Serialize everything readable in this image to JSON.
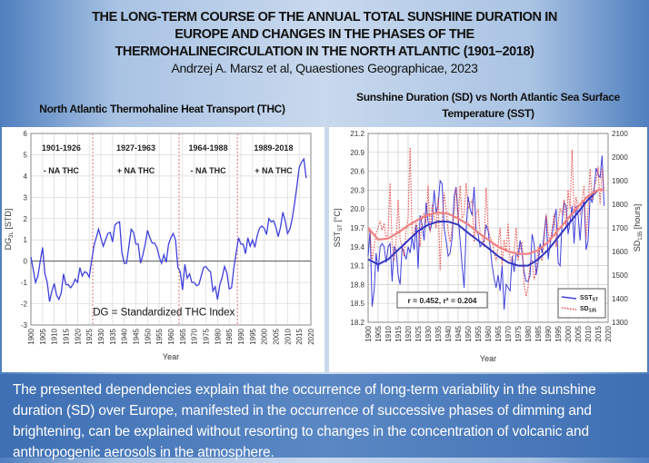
{
  "header": {
    "title_lines": [
      "THE LONG-TERM COURSE OF THE ANNUAL TOTAL SUNSHINE DURATION IN",
      "EUROPE AND CHANGES IN THE PHASES OF THE",
      "THERMOHALINECIRCULATION IN THE NORTH ATLANTIC (1901–2018)"
    ],
    "citation": "Andrzej A. Marsz et al, Quaestiones Geographicae, 2023"
  },
  "left_heading": "North Atlantic Thermohaline Heat Transport (THC)",
  "right_heading": [
    "Sunshine Duration (SD) vs North Atlantic Sea Surface",
    "Temperature (SST)"
  ],
  "footer": "The presented dependencies explain that the occurrence of long-term variability in the sunshine duration (SD) over Europe, manifested in the occurrence of successive phases of dimming and brightening, can be explained without resorting to changes in the concentration of volcanic and anthropogenic aerosols in the atmosphere.",
  "colors": {
    "blue": "#3f3fdd",
    "red": "#e84040",
    "phase_line": "#e06060"
  },
  "chart_data": [
    {
      "type": "line",
      "title": "North Atlantic Thermohaline Heat Transport (THC)",
      "xlabel": "Year",
      "ylabel": "DG",
      "ylabel_sub": "3L",
      "ylabel_unit": " [STD]",
      "xlim": [
        1900,
        2020
      ],
      "ylim": [
        -3,
        6
      ],
      "yticks": [
        -3,
        -2,
        -1,
        0,
        1,
        2,
        3,
        4,
        5,
        6
      ],
      "xticks_step": 5,
      "grid": true,
      "annotation": "DG = Standardized THC Index",
      "phase_boundaries": [
        1926.5,
        1963.5,
        1988.5
      ],
      "phases": [
        {
          "years": "1901-1926",
          "label": "- NA THC",
          "center": 1913
        },
        {
          "years": "1927-1963",
          "label": "+ NA THC",
          "center": 1945
        },
        {
          "years": "1964-1988",
          "label": "- NA THC",
          "center": 1976
        },
        {
          "years": "1989-2018",
          "label": "+ NA THC",
          "center": 2004
        }
      ],
      "start_year": 1900,
      "values": [
        0.2,
        -0.4,
        -1.0,
        -0.7,
        0.0,
        0.65,
        -0.6,
        -1.0,
        -1.9,
        -1.4,
        -1.05,
        -1.6,
        -1.8,
        -1.5,
        -0.6,
        -1.1,
        -1.1,
        -1.25,
        -1.1,
        -0.85,
        -1.0,
        -0.3,
        -0.7,
        -0.5,
        -0.55,
        -0.75,
        0.0,
        0.7,
        1.1,
        1.5,
        1.1,
        0.7,
        1.0,
        1.3,
        1.35,
        0.9,
        1.7,
        1.8,
        1.85,
        0.4,
        -0.1,
        -0.1,
        0.7,
        1.5,
        1.35,
        0.8,
        0.8,
        -0.1,
        0.3,
        0.8,
        1.45,
        1.1,
        0.85,
        0.85,
        0.65,
        0.2,
        -0.1,
        0.3,
        -0.05,
        0.8,
        1.1,
        1.3,
        1.0,
        -0.3,
        -0.5,
        -1.35,
        -0.15,
        -0.8,
        -0.6,
        -1.0,
        -1.0,
        -1.15,
        -1.1,
        -0.7,
        -0.3,
        -0.25,
        -0.4,
        -0.5,
        -1.4,
        -1.2,
        -1.8,
        -1.1,
        -0.75,
        -0.25,
        -0.55,
        -1.3,
        -1.25,
        -0.3,
        0.4,
        1.1,
        0.8,
        0.8,
        0.35,
        1.1,
        0.7,
        1.0,
        0.65,
        1.2,
        1.55,
        1.65,
        1.55,
        1.25,
        2.0,
        1.85,
        1.9,
        1.6,
        1.15,
        1.6,
        2.3,
        1.9,
        1.3,
        1.5,
        2.0,
        2.7,
        3.5,
        4.4,
        4.65,
        4.8,
        3.9
      ]
    },
    {
      "type": "line",
      "title": "Sunshine Duration (SD) vs North Atlantic Sea Surface Temperature (SST)",
      "xlabel": "Year",
      "ylabel_left": "SST",
      "ylabel_left_sub": "ST",
      "ylabel_left_unit": " [°C]",
      "ylabel_right": "SD",
      "ylabel_right_sub": "135",
      "ylabel_right_unit": " [hours]",
      "xlim": [
        1900,
        2020
      ],
      "ylim_left": [
        18.2,
        21.2
      ],
      "ylim_right": [
        1300,
        2100
      ],
      "yticks_left": [
        "18.2",
        "18.5",
        "18.8",
        "19.1",
        "19.4",
        "19.7",
        "20.0",
        "20.3",
        "20.6",
        "20.9",
        "21.2"
      ],
      "yticks_right": [
        "1300",
        "1400",
        "1500",
        "1600",
        "1700",
        "1800",
        "1900",
        "2000",
        "2100"
      ],
      "xticks_step": 5,
      "grid": true,
      "annotation": "r = 0.452, r² = 0.204",
      "legend": "bottom-right",
      "start_year": 1900,
      "series": [
        {
          "name": "SST",
          "sub": "ST",
          "axis": "left",
          "style": "solid",
          "values": [
            19.25,
            19.65,
            18.45,
            18.7,
            19.3,
            19.0,
            19.4,
            19.45,
            19.4,
            19.15,
            19.4,
            19.45,
            18.85,
            19.4,
            19.35,
            18.95,
            18.8,
            19.4,
            19.3,
            19.2,
            19.4,
            19.3,
            19.55,
            19.35,
            19.75,
            19.05,
            19.9,
            19.75,
            19.5,
            20.1,
            19.8,
            19.65,
            19.8,
            20.3,
            19.95,
            20.05,
            20.45,
            20.4,
            19.7,
            19.5,
            19.25,
            19.3,
            19.55,
            20.2,
            20.35,
            19.9,
            19.5,
            19.1,
            18.75,
            19.65,
            20.2,
            20.0,
            19.9,
            20.35,
            19.65,
            19.6,
            19.4,
            19.45,
            19.5,
            19.75,
            19.65,
            19.4,
            19.1,
            18.9,
            18.75,
            18.95,
            18.7,
            19.1,
            18.4,
            18.8,
            18.75,
            18.7,
            19.25,
            19.0,
            19.3,
            19.25,
            19.5,
            19.3,
            19.0,
            18.85,
            18.85,
            18.95,
            19.6,
            19.45,
            18.95,
            19.15,
            19.45,
            19.3,
            19.6,
            19.9,
            19.2,
            19.45,
            19.6,
            19.8,
            20.0,
            19.15,
            19.1,
            19.8,
            20.1,
            20.05,
            19.6,
            19.8,
            20.05,
            19.45,
            20.05,
            19.9,
            19.5,
            20.0,
            20.15,
            19.35,
            19.5,
            20.2,
            20.1,
            20.3,
            20.65,
            20.55,
            20.5,
            20.85,
            20.05
          ]
        },
        {
          "name": "SD",
          "sub": "135",
          "axis": "right",
          "style": "dotted",
          "values": [
            1700,
            1680,
            1560,
            1620,
            1680,
            1700,
            1730,
            1690,
            1720,
            1650,
            1680,
            1890,
            1620,
            1560,
            1650,
            1820,
            1650,
            1620,
            1580,
            1690,
            1740,
            2040,
            1660,
            1680,
            1720,
            1690,
            1620,
            1750,
            1760,
            1720,
            1880,
            1680,
            1800,
            1750,
            1700,
            1830,
            1520,
            1720,
            1850,
            1780,
            1690,
            1640,
            1700,
            1760,
            1870,
            1720,
            1880,
            1740,
            1760,
            1890,
            1780,
            1800,
            1820,
            1640,
            1760,
            1780,
            1680,
            1660,
            1620,
            1870,
            1700,
            1660,
            1640,
            1600,
            1560,
            1620,
            1700,
            1540,
            1650,
            1600,
            1720,
            1560,
            1560,
            1600,
            1700,
            1560,
            1620,
            1640,
            1460,
            1410,
            1450,
            1550,
            1560,
            1480,
            1520,
            1620,
            1580,
            1560,
            1640,
            1760,
            1680,
            1640,
            1700,
            1760,
            1620,
            1720,
            1780,
            1760,
            1820,
            1700,
            1860,
            1780,
            2030,
            1760,
            1830,
            1780,
            1760,
            1820,
            1880,
            1650,
            1780,
            1950,
            1820,
            1870,
            1900,
            1960,
            1800,
            1950,
            1860
          ]
        },
        {
          "name": "SST trend",
          "axis": "left",
          "style": "smooth",
          "x": [
            1900,
            1905,
            1910,
            1915,
            1920,
            1925,
            1930,
            1935,
            1940,
            1945,
            1950,
            1955,
            1960,
            1965,
            1970,
            1975,
            1980,
            1985,
            1990,
            1995,
            2000,
            2005,
            2010,
            2015,
            2018
          ],
          "values": [
            19.2,
            19.12,
            19.2,
            19.35,
            19.5,
            19.65,
            19.75,
            19.8,
            19.8,
            19.75,
            19.62,
            19.5,
            19.38,
            19.25,
            19.15,
            19.1,
            19.1,
            19.2,
            19.35,
            19.55,
            19.75,
            19.95,
            20.15,
            20.3,
            20.3
          ]
        },
        {
          "name": "SD trend",
          "axis": "right",
          "style": "smooth",
          "x": [
            1900,
            1905,
            1910,
            1915,
            1920,
            1925,
            1930,
            1935,
            1940,
            1945,
            1950,
            1955,
            1960,
            1965,
            1970,
            1975,
            1980,
            1985,
            1990,
            1995,
            2000,
            2005,
            2010,
            2015,
            2018
          ],
          "values": [
            1700,
            1650,
            1655,
            1680,
            1710,
            1735,
            1755,
            1765,
            1760,
            1740,
            1715,
            1680,
            1650,
            1620,
            1600,
            1590,
            1590,
            1605,
            1640,
            1690,
            1740,
            1790,
            1835,
            1860,
            1860
          ]
        }
      ]
    }
  ]
}
